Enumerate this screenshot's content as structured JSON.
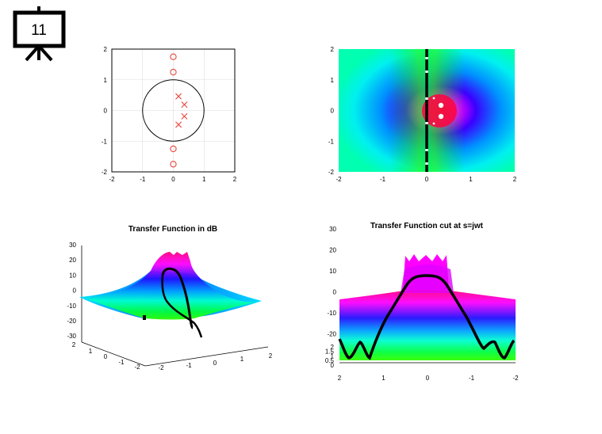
{
  "slide": {
    "number": "11"
  },
  "chart_data": [
    {
      "type": "scatter",
      "xlim": [
        -2,
        2
      ],
      "ylim": [
        -2,
        2
      ],
      "xticks": [
        "-2",
        "-1",
        "0",
        "1",
        "2"
      ],
      "yticks": [
        "-2",
        "-1",
        "0",
        "1",
        "2"
      ],
      "grid": true,
      "unit_circle": {
        "center": [
          0,
          0
        ],
        "radius": 1
      },
      "zeros": [
        [
          0,
          1.75
        ],
        [
          0,
          1.25
        ],
        [
          0,
          -1.25
        ],
        [
          0,
          -1.75
        ]
      ],
      "poles": [
        [
          0.17,
          0.46
        ],
        [
          0.36,
          0.19
        ],
        [
          0.36,
          -0.19
        ],
        [
          0.17,
          -0.46
        ]
      ],
      "colors": {
        "zeros": "#e8463c",
        "poles": "#e8463c",
        "circle": "#000000"
      }
    },
    {
      "type": "heatmap",
      "xlim": [
        -2,
        2
      ],
      "ylim": [
        -2,
        2
      ],
      "xticks": [
        "-2",
        "-1",
        "0",
        "1",
        "2"
      ],
      "yticks": [
        "-2",
        "-1",
        "0",
        "1",
        "2"
      ],
      "jw_axis_x": 0,
      "colormap": [
        "#00ffff",
        "#00ff00",
        "#0000ff",
        "#ff00ff",
        "#ff0000"
      ]
    },
    {
      "type": "area",
      "title": "Transfer Function in dB",
      "zticks": [
        "30",
        "20",
        "10",
        "0",
        "-10",
        "-20",
        "-30"
      ],
      "xticks": [
        "-2",
        "-1",
        "0",
        "1",
        "2"
      ],
      "yticks": [
        "2",
        "1",
        "0",
        "-1",
        "-2"
      ]
    },
    {
      "type": "area",
      "title": "Transfer Function cut at s=jwt",
      "zticks": [
        "30",
        "20",
        "10",
        "0",
        "-10",
        "-20"
      ],
      "xticks": [
        "2",
        "1",
        "0",
        "-1",
        "-2"
      ],
      "yticks": [
        "2",
        "1.5",
        "1",
        "0.5",
        "0"
      ]
    }
  ]
}
